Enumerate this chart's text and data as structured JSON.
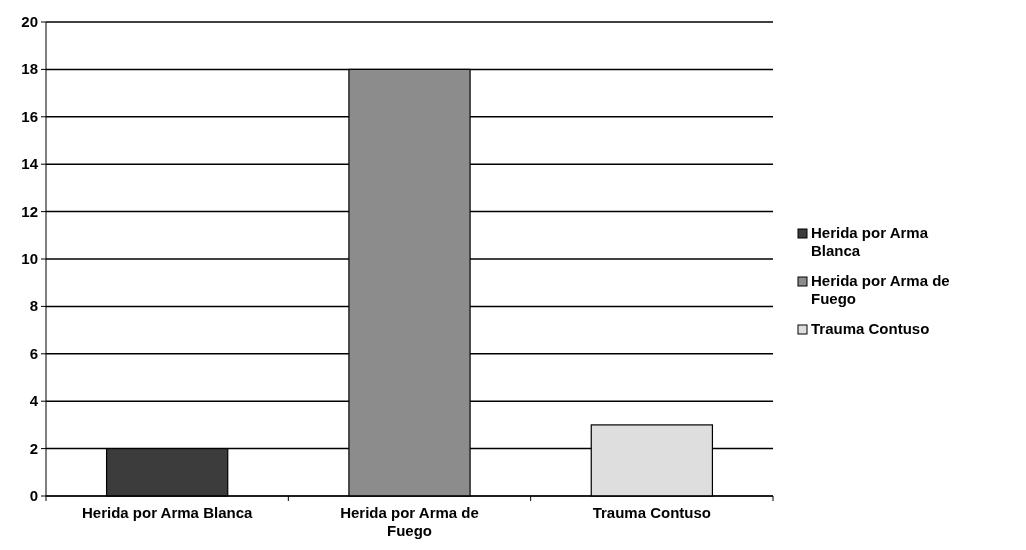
{
  "chart_data": {
    "type": "bar",
    "categories": [
      "Herida por Arma Blanca",
      "Herida por Arma de Fuego",
      "Trauma Contuso"
    ],
    "stacked": true,
    "series": [
      {
        "name": "Herida por Arma Blanca",
        "color": "#3c3c3c",
        "values": [
          2,
          null,
          null
        ]
      },
      {
        "name": "Herida por Arma de Fuego",
        "color": "#8c8c8c",
        "values": [
          null,
          18,
          null
        ]
      },
      {
        "name": "Trauma Contuso",
        "color": "#dedede",
        "values": [
          null,
          null,
          3
        ]
      }
    ],
    "ylim": [
      0,
      20
    ],
    "yticks": [
      0,
      2,
      4,
      6,
      8,
      10,
      12,
      14,
      16,
      18,
      20
    ],
    "grid": "y",
    "legend": "right"
  }
}
